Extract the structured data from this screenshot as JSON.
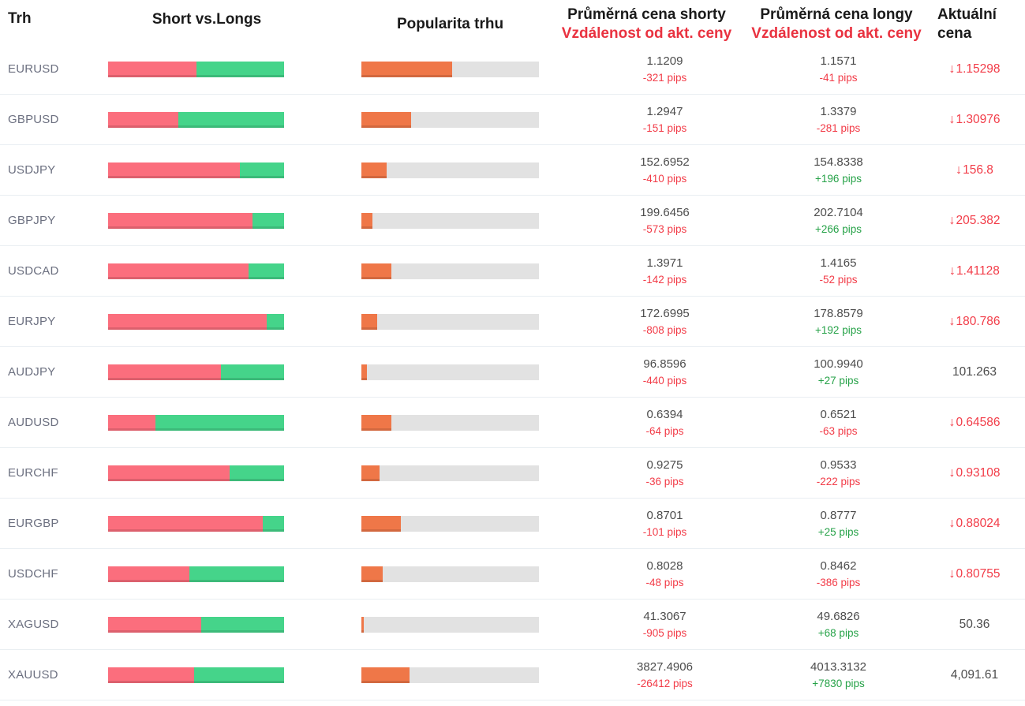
{
  "header": {
    "market": "Trh",
    "short_vs_longs": "Short vs.Longs",
    "popularity": "Popularita trhu",
    "avg_short_line1": "Průměrná cena shorty",
    "avg_short_line2": "Vzdálenost od akt. ceny",
    "avg_long_line1": "Průměrná cena longy",
    "avg_long_line2": "Vzdálenost od akt. ceny",
    "current_line1": "Aktuální",
    "current_line2": "cena"
  },
  "colors": {
    "short_bar": "#fb6e7d",
    "long_bar": "#45d48a",
    "popularity_bar": "#ef7748",
    "popularity_track": "#e2e2e2",
    "negative": "#f23c48",
    "positive": "#26a248",
    "header_red": "#e93240",
    "text_dark": "#4c4c4c",
    "market_label": "#6c7080"
  },
  "icons": {
    "down_arrow": "↓"
  },
  "rows": [
    {
      "market": "EURUSD",
      "short_pct": 50,
      "popularity_pct": 51,
      "short_price": "1.1209",
      "short_pips": "-321 pips",
      "long_price": "1.1571",
      "long_pips": "-41 pips",
      "current": "1.15298",
      "current_down": true
    },
    {
      "market": "GBPUSD",
      "short_pct": 40,
      "popularity_pct": 28,
      "short_price": "1.2947",
      "short_pips": "-151 pips",
      "long_price": "1.3379",
      "long_pips": "-281 pips",
      "current": "1.30976",
      "current_down": true
    },
    {
      "market": "USDJPY",
      "short_pct": 75,
      "popularity_pct": 14,
      "short_price": "152.6952",
      "short_pips": "-410 pips",
      "long_price": "154.8338",
      "long_pips": "+196 pips",
      "current": "156.8",
      "current_down": true
    },
    {
      "market": "GBPJPY",
      "short_pct": 82,
      "popularity_pct": 6,
      "short_price": "199.6456",
      "short_pips": "-573 pips",
      "long_price": "202.7104",
      "long_pips": "+266 pips",
      "current": "205.382",
      "current_down": true
    },
    {
      "market": "USDCAD",
      "short_pct": 80,
      "popularity_pct": 17,
      "short_price": "1.3971",
      "short_pips": "-142 pips",
      "long_price": "1.4165",
      "long_pips": "-52 pips",
      "current": "1.41128",
      "current_down": true
    },
    {
      "market": "EURJPY",
      "short_pct": 90,
      "popularity_pct": 9,
      "short_price": "172.6995",
      "short_pips": "-808 pips",
      "long_price": "178.8579",
      "long_pips": "+192 pips",
      "current": "180.786",
      "current_down": true
    },
    {
      "market": "AUDJPY",
      "short_pct": 64,
      "popularity_pct": 3,
      "short_price": "96.8596",
      "short_pips": "-440 pips",
      "long_price": "100.9940",
      "long_pips": "+27 pips",
      "current": "101.263",
      "current_down": false
    },
    {
      "market": "AUDUSD",
      "short_pct": 27,
      "popularity_pct": 17,
      "short_price": "0.6394",
      "short_pips": "-64 pips",
      "long_price": "0.6521",
      "long_pips": "-63 pips",
      "current": "0.64586",
      "current_down": true
    },
    {
      "market": "EURCHF",
      "short_pct": 69,
      "popularity_pct": 10,
      "short_price": "0.9275",
      "short_pips": "-36 pips",
      "long_price": "0.9533",
      "long_pips": "-222 pips",
      "current": "0.93108",
      "current_down": true
    },
    {
      "market": "EURGBP",
      "short_pct": 88,
      "popularity_pct": 22,
      "short_price": "0.8701",
      "short_pips": "-101 pips",
      "long_price": "0.8777",
      "long_pips": "+25 pips",
      "current": "0.88024",
      "current_down": true
    },
    {
      "market": "USDCHF",
      "short_pct": 46,
      "popularity_pct": 12,
      "short_price": "0.8028",
      "short_pips": "-48 pips",
      "long_price": "0.8462",
      "long_pips": "-386 pips",
      "current": "0.80755",
      "current_down": true
    },
    {
      "market": "XAGUSD",
      "short_pct": 53,
      "popularity_pct": 1.5,
      "short_price": "41.3067",
      "short_pips": "-905 pips",
      "long_price": "49.6826",
      "long_pips": "+68 pips",
      "current": "50.36",
      "current_down": false
    },
    {
      "market": "XAUUSD",
      "short_pct": 49,
      "popularity_pct": 27,
      "short_price": "3827.4906",
      "short_pips": "-26412 pips",
      "long_price": "4013.3132",
      "long_pips": "+7830 pips",
      "current": "4,091.61",
      "current_down": false
    }
  ]
}
